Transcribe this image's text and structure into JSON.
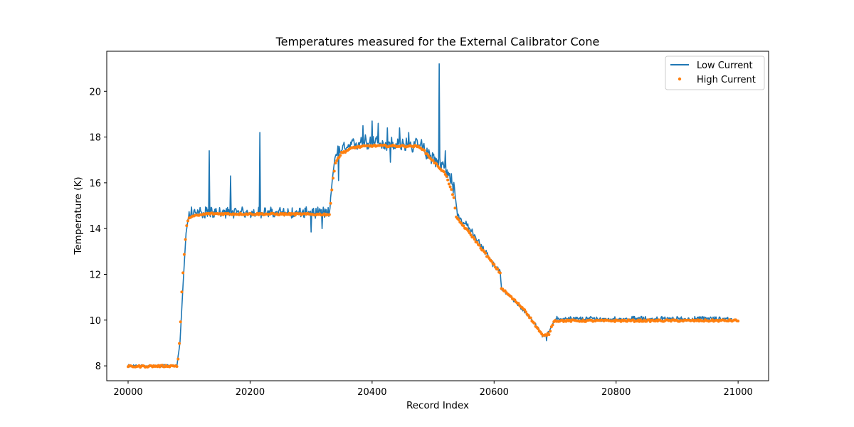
{
  "chart_data": {
    "type": "line",
    "title": "Temperatures measured for the External Calibrator Cone",
    "xlabel": "Record Index",
    "ylabel": "Temperature (K)",
    "xlim": [
      19965,
      21050
    ],
    "ylim": [
      7.35,
      21.75
    ],
    "xticks": [
      20000,
      20200,
      20400,
      20600,
      20800,
      21000
    ],
    "yticks": [
      8,
      10,
      12,
      14,
      16,
      18,
      20
    ],
    "grid": false,
    "legend_position": "top-right",
    "colors": {
      "low": "#1f77b4",
      "high": "#ff7f0e"
    },
    "series": [
      {
        "name": "Low Current",
        "style": "line",
        "base": [
          [
            20000,
            8.0
          ],
          [
            20080,
            8.0
          ],
          [
            20085,
            9.0
          ],
          [
            20090,
            11.5
          ],
          [
            20095,
            13.8
          ],
          [
            20100,
            14.7
          ],
          [
            20330,
            14.7
          ],
          [
            20335,
            16.2
          ],
          [
            20340,
            17.3
          ],
          [
            20360,
            17.5
          ],
          [
            20380,
            17.8
          ],
          [
            20480,
            17.6
          ],
          [
            20500,
            17.1
          ],
          [
            20520,
            16.6
          ],
          [
            20535,
            15.7
          ],
          [
            20540,
            14.6
          ],
          [
            20560,
            14.0
          ],
          [
            20600,
            12.4
          ],
          [
            20610,
            12.1
          ],
          [
            20612,
            11.4
          ],
          [
            20660,
            10.1
          ],
          [
            20680,
            9.3
          ],
          [
            20690,
            9.5
          ],
          [
            20700,
            10.05
          ],
          [
            21000,
            10.05
          ]
        ],
        "noise_segments": [
          [
            20000,
            20082,
            0.06
          ],
          [
            20098,
            20332,
            0.25
          ],
          [
            20340,
            20535,
            0.35
          ],
          [
            20540,
            20612,
            0.15
          ],
          [
            20612,
            20690,
            0.08
          ],
          [
            20700,
            20990,
            0.12
          ]
        ],
        "spikes": [
          [
            20133,
            17.4
          ],
          [
            20168,
            16.3
          ],
          [
            20216,
            18.2
          ],
          [
            20300,
            13.85
          ],
          [
            20318,
            14.0
          ],
          [
            20345,
            16.1
          ],
          [
            20385,
            18.5
          ],
          [
            20400,
            18.7
          ],
          [
            20410,
            18.6
          ],
          [
            20425,
            18.4
          ],
          [
            20445,
            18.4
          ],
          [
            20460,
            18.2
          ],
          [
            20510,
            21.2
          ],
          [
            20520,
            17.4
          ],
          [
            20530,
            16.4
          ],
          [
            20430,
            16.9
          ],
          [
            20686,
            9.1
          ]
        ]
      },
      {
        "name": "High Current",
        "style": "scatter",
        "points": [
          [
            20000,
            7.97
          ],
          [
            20080,
            8.0
          ],
          [
            20082,
            8.3
          ],
          [
            20085,
            9.3
          ],
          [
            20088,
            11.2
          ],
          [
            20092,
            12.9
          ],
          [
            20096,
            14.1
          ],
          [
            20100,
            14.5
          ],
          [
            20130,
            14.65
          ],
          [
            20330,
            14.62
          ],
          [
            20332,
            15.1
          ],
          [
            20336,
            16.2
          ],
          [
            20340,
            16.9
          ],
          [
            20350,
            17.3
          ],
          [
            20370,
            17.55
          ],
          [
            20400,
            17.62
          ],
          [
            20470,
            17.6
          ],
          [
            20480,
            17.55
          ],
          [
            20500,
            16.95
          ],
          [
            20520,
            16.4
          ],
          [
            20535,
            15.3
          ],
          [
            20537,
            14.5
          ],
          [
            20560,
            13.8
          ],
          [
            20600,
            12.4
          ],
          [
            20610,
            12.05
          ],
          [
            20612,
            11.4
          ],
          [
            20650,
            10.45
          ],
          [
            20680,
            9.3
          ],
          [
            20690,
            9.4
          ],
          [
            20698,
            9.97
          ],
          [
            21000,
            9.98
          ]
        ],
        "noise": 0.04
      }
    ]
  }
}
